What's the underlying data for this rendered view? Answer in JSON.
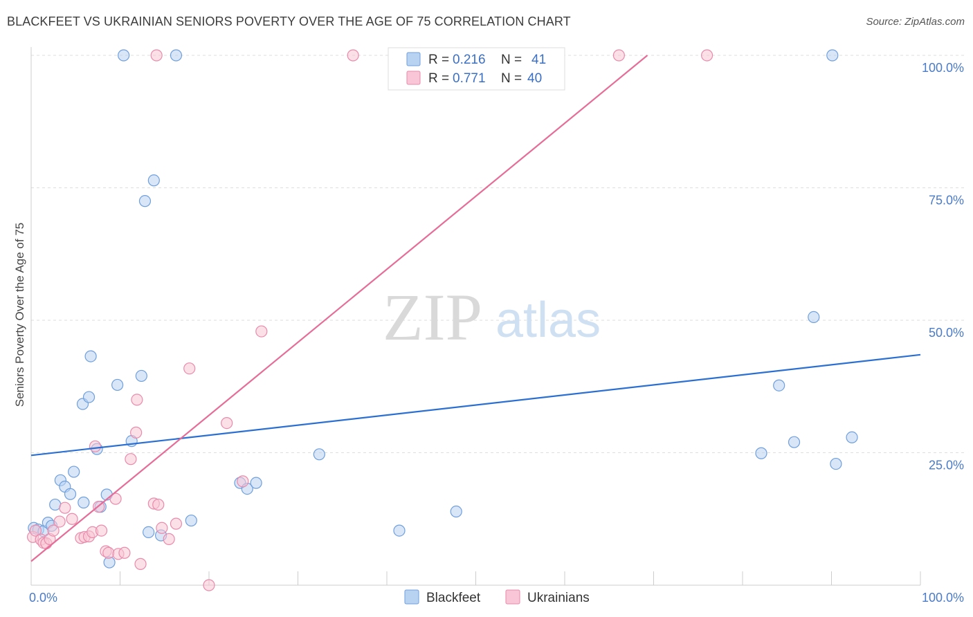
{
  "title": "BLACKFEET VS UKRAINIAN SENIORS POVERTY OVER THE AGE OF 75 CORRELATION CHART",
  "source": "Source: ZipAtlas.com",
  "watermark": {
    "zip": "ZIP",
    "atlas": "atlas"
  },
  "colors": {
    "blackfeet_fill": "#b8d2f2",
    "blackfeet_stroke": "#6f9fdc",
    "blackfeet_line": "#2a6fd1",
    "ukrainian_fill": "#f8c6d6",
    "ukrainian_stroke": "#e98aab",
    "ukrainian_line": "#e56d98",
    "tick": "#4a7bc8",
    "grid": "#dddddd"
  },
  "legend": {
    "r_label": "R =",
    "n_label": "N =",
    "rows": [
      {
        "r": "0.216",
        "n": "41"
      },
      {
        "r": "0.771",
        "n": "40"
      }
    ]
  },
  "chart_data": {
    "type": "scatter",
    "title": "BLACKFEET VS UKRAINIAN SENIORS POVERTY OVER THE AGE OF 75 CORRELATION CHART",
    "xlabel": "",
    "ylabel": "Seniors Poverty Over the Age of 75",
    "xlim": [
      0,
      100
    ],
    "ylim": [
      0,
      100
    ],
    "x_tick_labels": [
      "0.0%",
      "100.0%"
    ],
    "y_ticks": [
      25,
      50,
      75,
      100
    ],
    "y_tick_labels": [
      "25.0%",
      "50.0%",
      "75.0%",
      "100.0%"
    ],
    "legend_position": "bottom-center",
    "series": [
      {
        "name": "Blackfeet",
        "r": 0.216,
        "n": 41,
        "trend": {
          "x": [
            0,
            100
          ],
          "y": [
            24.5,
            43.5
          ]
        },
        "points": [
          {
            "x": 0.3,
            "y": 10.8
          },
          {
            "x": 0.8,
            "y": 10.5
          },
          {
            "x": 1.4,
            "y": 10.2
          },
          {
            "x": 1.9,
            "y": 11.8
          },
          {
            "x": 2.3,
            "y": 11.2
          },
          {
            "x": 2.7,
            "y": 15.2
          },
          {
            "x": 3.3,
            "y": 19.8
          },
          {
            "x": 3.8,
            "y": 18.6
          },
          {
            "x": 4.4,
            "y": 17.2
          },
          {
            "x": 4.8,
            "y": 21.4
          },
          {
            "x": 5.8,
            "y": 34.2
          },
          {
            "x": 5.9,
            "y": 15.6
          },
          {
            "x": 6.5,
            "y": 35.5
          },
          {
            "x": 6.7,
            "y": 43.2
          },
          {
            "x": 7.4,
            "y": 25.7
          },
          {
            "x": 7.8,
            "y": 14.8
          },
          {
            "x": 8.5,
            "y": 17.1
          },
          {
            "x": 8.8,
            "y": 4.3
          },
          {
            "x": 9.7,
            "y": 37.8
          },
          {
            "x": 10.4,
            "y": 100
          },
          {
            "x": 11.3,
            "y": 27.2
          },
          {
            "x": 12.4,
            "y": 39.5
          },
          {
            "x": 12.8,
            "y": 72.5
          },
          {
            "x": 13.2,
            "y": 10.0
          },
          {
            "x": 13.8,
            "y": 76.4
          },
          {
            "x": 14.6,
            "y": 9.4
          },
          {
            "x": 16.3,
            "y": 100
          },
          {
            "x": 18.0,
            "y": 12.2
          },
          {
            "x": 23.5,
            "y": 19.3
          },
          {
            "x": 24.3,
            "y": 18.2
          },
          {
            "x": 25.3,
            "y": 19.3
          },
          {
            "x": 32.4,
            "y": 24.7
          },
          {
            "x": 41.4,
            "y": 10.3
          },
          {
            "x": 47.8,
            "y": 13.9
          },
          {
            "x": 82.1,
            "y": 24.9
          },
          {
            "x": 84.1,
            "y": 37.7
          },
          {
            "x": 85.8,
            "y": 27.0
          },
          {
            "x": 88.0,
            "y": 50.6
          },
          {
            "x": 90.1,
            "y": 100
          },
          {
            "x": 90.5,
            "y": 22.9
          },
          {
            "x": 92.3,
            "y": 27.9
          }
        ]
      },
      {
        "name": "Ukrainians",
        "r": 0.771,
        "n": 40,
        "trend": {
          "x": [
            0,
            69.3
          ],
          "y": [
            4.5,
            100
          ]
        },
        "points": [
          {
            "x": 0.2,
            "y": 9.1
          },
          {
            "x": 0.5,
            "y": 10.3
          },
          {
            "x": 1.1,
            "y": 8.6
          },
          {
            "x": 1.4,
            "y": 8.0
          },
          {
            "x": 1.7,
            "y": 7.9
          },
          {
            "x": 2.1,
            "y": 8.7
          },
          {
            "x": 2.5,
            "y": 10.3
          },
          {
            "x": 3.2,
            "y": 12.0
          },
          {
            "x": 3.8,
            "y": 14.6
          },
          {
            "x": 4.6,
            "y": 12.5
          },
          {
            "x": 5.6,
            "y": 8.9
          },
          {
            "x": 6.0,
            "y": 9.1
          },
          {
            "x": 6.5,
            "y": 9.2
          },
          {
            "x": 6.9,
            "y": 10.0
          },
          {
            "x": 7.2,
            "y": 26.2
          },
          {
            "x": 7.6,
            "y": 14.8
          },
          {
            "x": 7.9,
            "y": 10.3
          },
          {
            "x": 8.4,
            "y": 6.4
          },
          {
            "x": 8.7,
            "y": 6.1
          },
          {
            "x": 9.5,
            "y": 16.3
          },
          {
            "x": 9.8,
            "y": 5.9
          },
          {
            "x": 10.5,
            "y": 6.1
          },
          {
            "x": 11.2,
            "y": 23.8
          },
          {
            "x": 11.8,
            "y": 28.8
          },
          {
            "x": 11.9,
            "y": 35.0
          },
          {
            "x": 12.3,
            "y": 4.0
          },
          {
            "x": 13.8,
            "y": 15.4
          },
          {
            "x": 14.1,
            "y": 100
          },
          {
            "x": 14.3,
            "y": 15.2
          },
          {
            "x": 14.7,
            "y": 10.8
          },
          {
            "x": 15.5,
            "y": 8.7
          },
          {
            "x": 16.3,
            "y": 11.6
          },
          {
            "x": 17.8,
            "y": 40.9
          },
          {
            "x": 20.0,
            "y": 0.0
          },
          {
            "x": 22.0,
            "y": 30.6
          },
          {
            "x": 23.8,
            "y": 19.6
          },
          {
            "x": 25.9,
            "y": 47.9
          },
          {
            "x": 36.2,
            "y": 100
          },
          {
            "x": 66.1,
            "y": 100
          },
          {
            "x": 76.0,
            "y": 100
          }
        ]
      }
    ]
  }
}
